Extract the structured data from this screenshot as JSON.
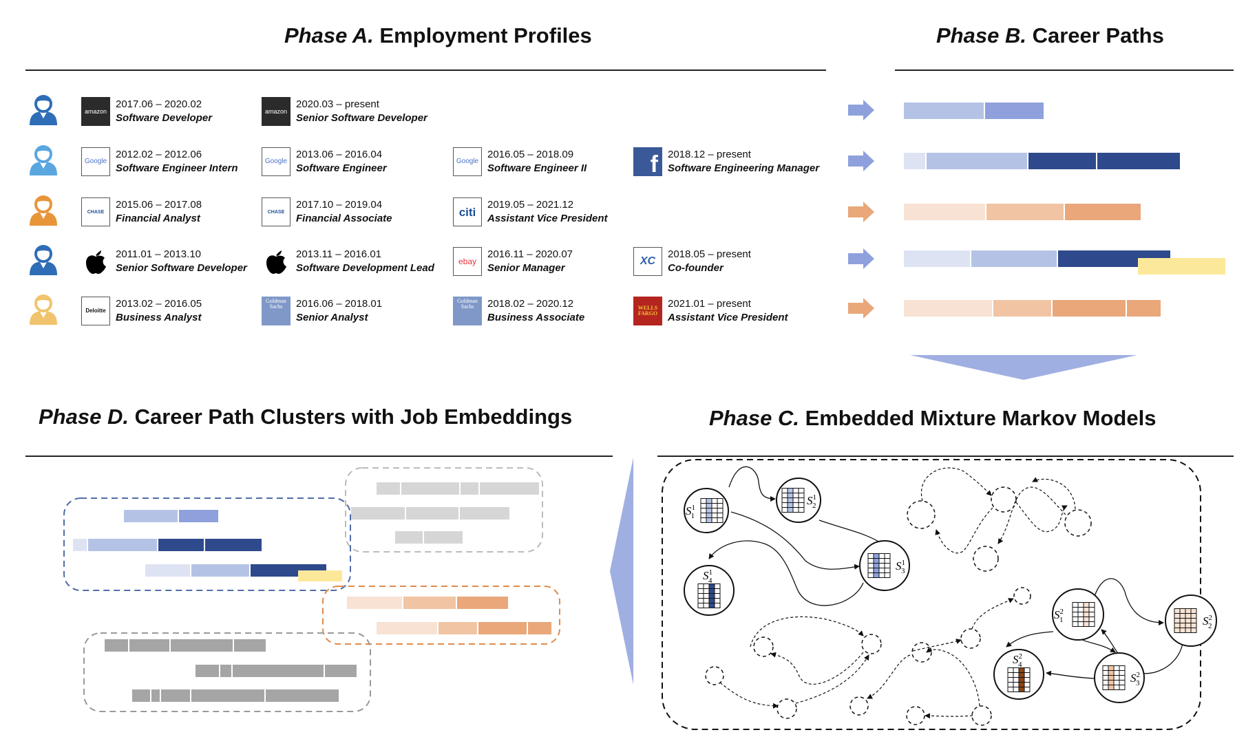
{
  "titles": {
    "a_italic": "Phase A.",
    "a_rest": " Employment Profiles",
    "b_italic": "Phase B.",
    "b_rest": " Career Paths",
    "c_italic": "Phase C.",
    "c_rest": " Embedded Mixture Markov Models",
    "d_italic": "Phase D.",
    "d_rest": " Career Path Clusters with Job Embeddings"
  },
  "colors": {
    "blue_1": "#dde3f3",
    "blue_2": "#b4c3e5",
    "blue_3": "#8ea1dc",
    "blue_4": "#2e4a8c",
    "orange_1": "#f8e2d3",
    "orange_2": "#f1c4a3",
    "orange_3": "#e9a77a",
    "yellow": "#fce89a",
    "gray_light": "#d6d6d6",
    "gray_dark": "#a5a5a5",
    "arrow_blue": "#8ea1dc",
    "arrow_orange": "#e9a77a"
  },
  "profiles": [
    {
      "person_color": "#2f6db7",
      "jobs": [
        {
          "company": "amazon",
          "logo_text": "amazon",
          "dates": "2017.06 – 2020.02",
          "title": "Software Developer"
        },
        {
          "company": "amazon",
          "logo_text": "amazon",
          "dates": "2020.03 – present",
          "title": "Senior Software Developer"
        }
      ]
    },
    {
      "person_color": "#5aa6df",
      "jobs": [
        {
          "company": "google",
          "logo_text": "Google",
          "dates": "2012.02 – 2012.06",
          "title": "Software Engineer Intern"
        },
        {
          "company": "google",
          "logo_text": "Google",
          "dates": "2013.06 – 2016.04",
          "title": "Software Engineer"
        },
        {
          "company": "google",
          "logo_text": "Google",
          "dates": "2016.05 – 2018.09",
          "title": "Software Engineer II"
        },
        {
          "company": "facebook",
          "logo_text": "f",
          "dates": "2018.12 – present",
          "title": "Software Engineering Manager"
        }
      ]
    },
    {
      "person_color": "#e8953a",
      "jobs": [
        {
          "company": "chase",
          "logo_text": "CHASE",
          "dates": "2015.06 – 2017.08",
          "title": "Financial Analyst"
        },
        {
          "company": "chase",
          "logo_text": "CHASE",
          "dates": "2017.10 – 2019.04",
          "title": "Financial Associate"
        },
        {
          "company": "citi",
          "logo_text": "citi",
          "dates": "2019.05 – 2021.12",
          "title": "Assistant Vice President"
        }
      ]
    },
    {
      "person_color": "#2f6db7",
      "jobs": [
        {
          "company": "apple",
          "logo_text": "",
          "dates": "2011.01 – 2013.10",
          "title": "Senior Software Developer"
        },
        {
          "company": "apple",
          "logo_text": "",
          "dates": "2013.11 – 2016.01",
          "title": "Software Development Lead"
        },
        {
          "company": "ebay",
          "logo_text": "ebay",
          "dates": "2016.11 – 2020.07",
          "title": "Senior Manager"
        },
        {
          "company": "startup",
          "logo_text": "XC",
          "dates": "2018.05 – present",
          "title": "Co-founder"
        }
      ]
    },
    {
      "person_color": "#f0c46c",
      "jobs": [
        {
          "company": "deloitte",
          "logo_text": "Deloitte",
          "dates": "2013.02 – 2016.05",
          "title": "Business Analyst"
        },
        {
          "company": "goldman",
          "logo_text": "Goldman Sachs",
          "dates": "2016.06 – 2018.01",
          "title": "Senior Analyst"
        },
        {
          "company": "goldman",
          "logo_text": "Goldman Sachs",
          "dates": "2018.02 – 2020.12",
          "title": "Business Associate"
        },
        {
          "company": "wellsfargo",
          "logo_text": "WELLS FARGO",
          "dates": "2021.01 – present",
          "title": "Assistant Vice President"
        }
      ]
    }
  ],
  "state_labels": {
    "s1_1": {
      "base": "S",
      "sub": "1",
      "sup": "1"
    },
    "s2_1": {
      "base": "S",
      "sub": "2",
      "sup": "1"
    },
    "s3_1": {
      "base": "S",
      "sub": "3",
      "sup": "1"
    },
    "s4_1": {
      "base": "S",
      "sub": "4",
      "sup": "1"
    },
    "s1_2": {
      "base": "S",
      "sub": "1",
      "sup": "2"
    },
    "s2_2": {
      "base": "S",
      "sub": "2",
      "sup": "2"
    },
    "s3_2": {
      "base": "S",
      "sub": "3",
      "sup": "2"
    },
    "s4_2": {
      "base": "S",
      "sub": "4",
      "sup": "2"
    }
  }
}
